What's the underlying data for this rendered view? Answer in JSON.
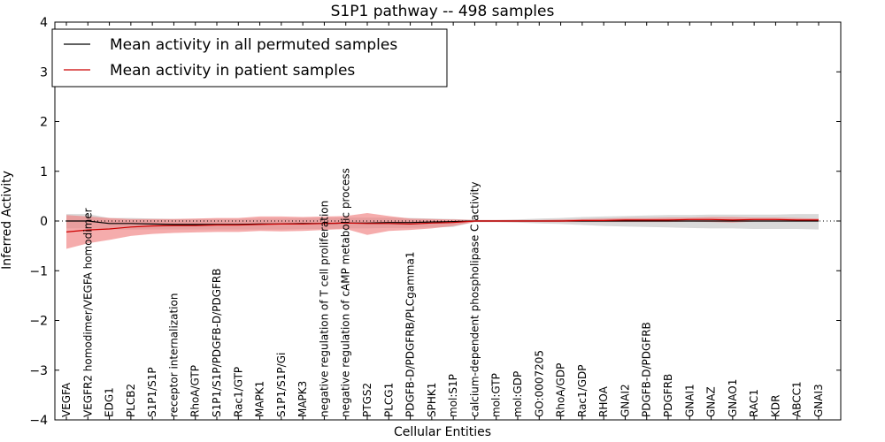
{
  "chart_data": {
    "type": "line",
    "title": "S1P1 pathway -- 498 samples",
    "xlabel": "Cellular Entities",
    "ylabel": "Inferred Activity",
    "ylim": [
      -4,
      4
    ],
    "yticks": [
      "4",
      "3",
      "2",
      "1",
      "0",
      "−1",
      "−2",
      "−3",
      "−4"
    ],
    "ytick_values": [
      4,
      3,
      2,
      1,
      0,
      -1,
      -2,
      -3,
      -4
    ],
    "categories": [
      "VEGFA",
      "VEGFR2 homodimer/VEGFA homodimer",
      "EDG1",
      "PLCB2",
      "S1P1/S1P",
      "receptor internalization",
      "RhoA/GTP",
      "S1P1/S1P/PDGFB-D/PDGFRB",
      "Rac1/GTP",
      "MAPK1",
      "S1P1/S1P/Gi",
      "MAPK3",
      "negative regulation of T cell proliferation",
      "negative regulation of cAMP metabolic process",
      "PTGS2",
      "PLCG1",
      "PDGFB-D/PDGFRB/PLCgamma1",
      "SPHK1",
      "mol:S1P",
      "calcium-dependent phospholipase C activity",
      "mol:GTP",
      "mol:GDP",
      "GO:0007205",
      "RhoA/GDP",
      "Rac1/GDP",
      "RHOA",
      "GNAI2",
      "PDGFB-D/PDGFRB",
      "PDGFRB",
      "GNAI1",
      "GNAZ",
      "GNAO1",
      "RAC1",
      "KDR",
      "ABCC1",
      "GNAI3"
    ],
    "legend": {
      "location": "top-left",
      "entries": [
        "Mean activity in all permuted samples",
        "Mean activity in patient samples"
      ]
    },
    "series": [
      {
        "name": "Mean activity in all permuted samples",
        "color": "#000000",
        "band_color": "#aaaaaa",
        "values": [
          0.0,
          0.0,
          -0.05,
          -0.05,
          -0.06,
          -0.07,
          -0.07,
          -0.07,
          -0.07,
          -0.06,
          -0.06,
          -0.05,
          -0.05,
          -0.04,
          -0.04,
          -0.03,
          -0.03,
          -0.02,
          -0.01,
          0.0,
          0.0,
          0.0,
          0.0,
          0.0,
          0.0,
          0.0,
          0.0,
          0.0,
          0.0,
          0.0,
          0.0,
          0.0,
          0.0,
          0.0,
          0.0,
          0.0
        ],
        "lower": [
          -0.15,
          -0.15,
          -0.17,
          -0.17,
          -0.17,
          -0.17,
          -0.17,
          -0.17,
          -0.17,
          -0.17,
          -0.17,
          -0.16,
          -0.16,
          -0.15,
          -0.15,
          -0.14,
          -0.14,
          -0.13,
          -0.12,
          -0.02,
          -0.02,
          -0.03,
          -0.05,
          -0.06,
          -0.08,
          -0.1,
          -0.11,
          -0.12,
          -0.13,
          -0.14,
          -0.15,
          -0.15,
          -0.16,
          -0.16,
          -0.16,
          -0.17
        ],
        "upper": [
          0.14,
          0.14,
          0.06,
          0.06,
          0.05,
          0.04,
          0.04,
          0.04,
          0.04,
          0.05,
          0.05,
          0.06,
          0.06,
          0.07,
          0.07,
          0.07,
          0.06,
          0.05,
          0.04,
          0.02,
          0.02,
          0.03,
          0.05,
          0.06,
          0.08,
          0.09,
          0.1,
          0.11,
          0.12,
          0.12,
          0.13,
          0.13,
          0.13,
          0.13,
          0.14,
          0.14
        ]
      },
      {
        "name": "Mean activity in patient samples",
        "color": "#cc0000",
        "band_color": "#f08080",
        "values": [
          -0.22,
          -0.18,
          -0.16,
          -0.12,
          -0.1,
          -0.09,
          -0.09,
          -0.08,
          -0.08,
          -0.07,
          -0.06,
          -0.06,
          -0.05,
          -0.04,
          -0.05,
          -0.05,
          -0.06,
          -0.04,
          -0.03,
          0.0,
          0.0,
          0.0,
          0.0,
          0.0,
          0.01,
          0.01,
          0.02,
          0.02,
          0.02,
          0.03,
          0.03,
          0.02,
          0.03,
          0.03,
          0.02,
          0.02
        ],
        "lower": [
          -0.56,
          -0.45,
          -0.38,
          -0.3,
          -0.26,
          -0.24,
          -0.23,
          -0.22,
          -0.22,
          -0.2,
          -0.21,
          -0.2,
          -0.18,
          -0.16,
          -0.28,
          -0.2,
          -0.18,
          -0.15,
          -0.1,
          -0.02,
          -0.02,
          -0.02,
          -0.02,
          -0.02,
          -0.02,
          -0.02,
          -0.02,
          -0.02,
          -0.02,
          -0.01,
          -0.02,
          -0.03,
          -0.01,
          -0.01,
          -0.01,
          -0.01
        ],
        "upper": [
          0.12,
          0.09,
          0.06,
          0.04,
          0.04,
          0.04,
          0.05,
          0.06,
          0.06,
          0.09,
          0.09,
          0.08,
          0.09,
          0.1,
          0.16,
          0.1,
          0.05,
          0.04,
          0.03,
          0.02,
          0.02,
          0.02,
          0.02,
          0.03,
          0.04,
          0.05,
          0.06,
          0.06,
          0.07,
          0.07,
          0.08,
          0.08,
          0.07,
          0.07,
          0.06,
          0.05
        ]
      }
    ]
  }
}
